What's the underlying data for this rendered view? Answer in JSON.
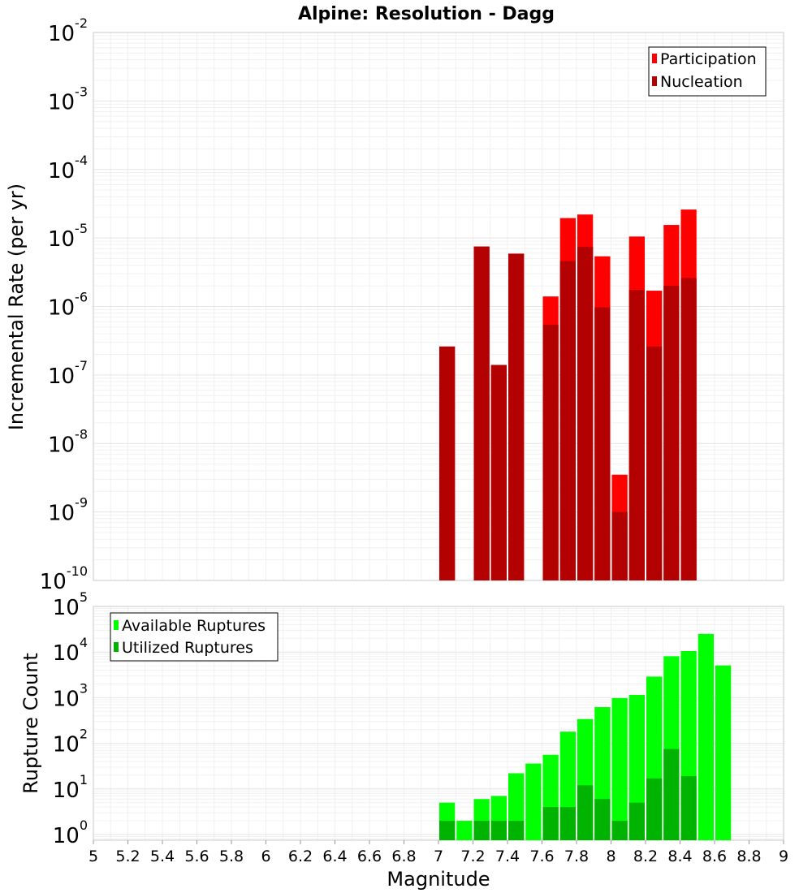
{
  "title": "Alpine: Resolution - Dagg",
  "chart_data": [
    {
      "type": "bar",
      "name": "incremental-rate",
      "ylabel": "Incremental Rate (per yr)",
      "xlabel": "",
      "xlim": [
        5,
        9
      ],
      "ylim": [
        1e-10,
        0.01
      ],
      "yscale": "log",
      "bin_width": 0.1,
      "grid": true,
      "legend_position": "top-right",
      "y_ticks": [
        {
          "base": "10",
          "exp": "-10",
          "value": 1e-10
        },
        {
          "base": "10",
          "exp": "-9",
          "value": 1e-09
        },
        {
          "base": "10",
          "exp": "-8",
          "value": 1e-08
        },
        {
          "base": "10",
          "exp": "-7",
          "value": 1e-07
        },
        {
          "base": "10",
          "exp": "-6",
          "value": 1e-06
        },
        {
          "base": "10",
          "exp": "-5",
          "value": 1e-05
        },
        {
          "base": "10",
          "exp": "-4",
          "value": 0.0001
        },
        {
          "base": "10",
          "exp": "-3",
          "value": 0.001
        },
        {
          "base": "10",
          "exp": "-2",
          "value": 0.01
        }
      ],
      "series": [
        {
          "name": "Participation",
          "color": "#ff0000",
          "x": [
            7.05,
            7.25,
            7.35,
            7.45,
            7.65,
            7.75,
            7.85,
            7.95,
            8.05,
            8.15,
            8.25,
            8.35,
            8.45
          ],
          "values": [
            2.6e-07,
            7.5e-06,
            1.4e-07,
            5.9e-06,
            1.4e-06,
            1.95e-05,
            2.2e-05,
            5.4e-06,
            3.5e-09,
            1.05e-05,
            1.7e-06,
            1.55e-05,
            2.6e-05
          ]
        },
        {
          "name": "Nucleation",
          "color": "#b30000",
          "x": [
            7.05,
            7.25,
            7.35,
            7.45,
            7.65,
            7.75,
            7.85,
            7.95,
            8.05,
            8.15,
            8.25,
            8.35,
            8.45
          ],
          "values": [
            2.6e-07,
            7.5e-06,
            1.4e-07,
            5.9e-06,
            5.4e-07,
            4.6e-06,
            7.4e-06,
            9.7e-07,
            1e-09,
            1.75e-06,
            2.6e-07,
            2e-06,
            2.6e-06
          ]
        }
      ]
    },
    {
      "type": "bar",
      "name": "rupture-count",
      "ylabel": "Rupture Count",
      "xlabel": "Magnitude",
      "xlim": [
        5,
        9
      ],
      "ylim": [
        0.75,
        100000.0
      ],
      "yscale": "log",
      "bin_width": 0.1,
      "grid": true,
      "legend_position": "top-left",
      "x_ticks": [
        "5",
        "5.2",
        "5.4",
        "5.6",
        "5.8",
        "6",
        "6.2",
        "6.4",
        "6.6",
        "6.8",
        "7",
        "7.2",
        "7.4",
        "7.6",
        "7.8",
        "8",
        "8.2",
        "8.4",
        "8.6",
        "8.8",
        "9"
      ],
      "y_ticks": [
        {
          "base": "10",
          "exp": "0",
          "value": 1
        },
        {
          "base": "10",
          "exp": "1",
          "value": 10
        },
        {
          "base": "10",
          "exp": "2",
          "value": 100
        },
        {
          "base": "10",
          "exp": "3",
          "value": 1000
        },
        {
          "base": "10",
          "exp": "4",
          "value": 10000
        },
        {
          "base": "10",
          "exp": "5",
          "value": 100000
        }
      ],
      "series": [
        {
          "name": "Available Ruptures",
          "color": "#00ff00",
          "x": [
            7.05,
            7.15,
            7.25,
            7.35,
            7.45,
            7.55,
            7.65,
            7.75,
            7.85,
            7.95,
            8.05,
            8.15,
            8.25,
            8.35,
            8.45,
            8.55,
            8.65
          ],
          "values": [
            5,
            2,
            6,
            7,
            22,
            36,
            56,
            180,
            340,
            620,
            980,
            1150,
            2900,
            8100,
            10500,
            25000,
            5100
          ]
        },
        {
          "name": "Utilized Ruptures",
          "color": "#00b300",
          "x": [
            7.05,
            7.25,
            7.35,
            7.45,
            7.65,
            7.75,
            7.85,
            7.95,
            8.05,
            8.15,
            8.25,
            8.35,
            8.45
          ],
          "values": [
            2,
            2,
            2,
            2,
            4,
            4,
            12,
            6,
            2,
            5,
            17,
            75,
            19
          ]
        }
      ]
    }
  ]
}
